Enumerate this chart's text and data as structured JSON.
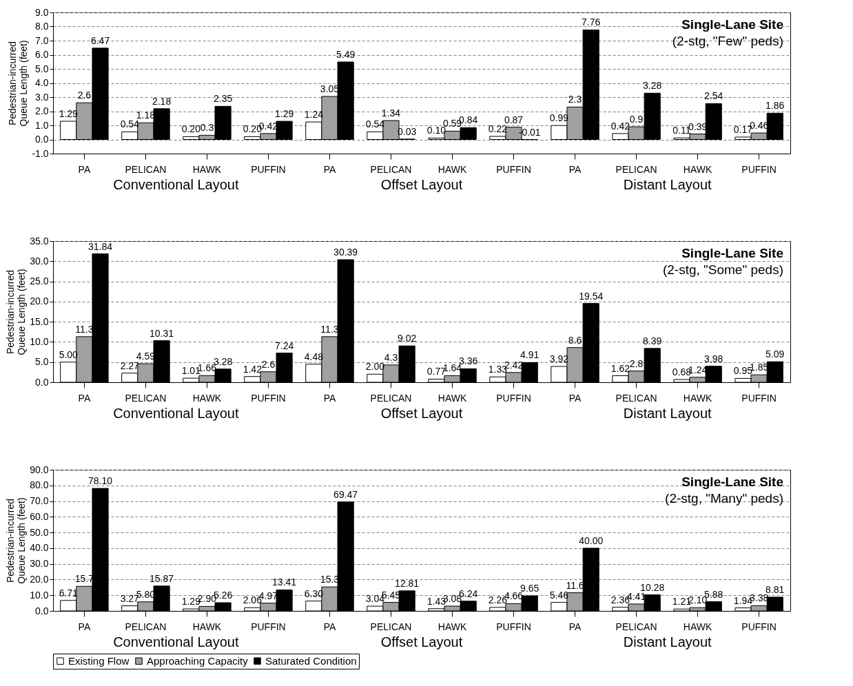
{
  "chart_data": [
    {
      "type": "bar",
      "title": "Single-Lane Site",
      "subtitle": "(2-stg, \"Few\" peds)",
      "ylabel": "Pedestrian-incurred Queue Length (feet)",
      "categories": [
        "PA",
        "PELICAN",
        "HAWK",
        "PUFFIN",
        "PA",
        "PELICAN",
        "HAWK",
        "PUFFIN",
        "PA",
        "PELICAN",
        "HAWK",
        "PUFFIN"
      ],
      "annotations": [
        "Conventional Layout",
        "Offset Layout",
        "Distant Layout"
      ],
      "series": [
        {
          "color": "#ffffff",
          "values": [
            1.29,
            0.54,
            0.2,
            0.2,
            1.24,
            0.54,
            0.1,
            0.22,
            0.99,
            0.42,
            0.11,
            0.17
          ],
          "value_labels": [
            "1.29",
            "0.54",
            "0.20",
            "0.20",
            "1.24",
            "0.54",
            "0.10",
            "0.22",
            "0.99",
            "0.42",
            "0.11",
            "0.17"
          ]
        },
        {
          "color": "#a0a0a0",
          "values": [
            2.6,
            1.18,
            0.3,
            0.42,
            3.05,
            1.34,
            0.59,
            0.87,
            2.3,
            0.9,
            0.39,
            0.46
          ],
          "value_labels": [
            "2.6",
            "1.18",
            "0.3",
            "0.42",
            "3.05",
            "1.34",
            "0.59",
            "0.87",
            "2.3",
            "0.9",
            "0.39",
            "0.46"
          ]
        },
        {
          "color": "#000000",
          "values": [
            6.47,
            2.18,
            2.35,
            1.29,
            5.49,
            0.03,
            0.84,
            -0.01,
            7.76,
            3.28,
            2.54,
            1.86
          ],
          "value_labels": [
            "6.47",
            "2.18",
            "2.35",
            "1.29",
            "5.49",
            "0.03",
            "0.84",
            "-0.01",
            "7.76",
            "3.28",
            "2.54",
            "1.86"
          ]
        }
      ],
      "ylim": [
        -1,
        9
      ],
      "yticks": [
        {
          "value": -1,
          "label": "-1.0"
        },
        {
          "value": 0,
          "label": "0.0"
        },
        {
          "value": 1,
          "label": "1.0"
        },
        {
          "value": 2,
          "label": "2.0"
        },
        {
          "value": 3,
          "label": "3.0"
        },
        {
          "value": 4,
          "label": "4.0"
        },
        {
          "value": 5,
          "label": "5.0"
        },
        {
          "value": 6,
          "label": "6.0"
        },
        {
          "value": 7,
          "label": "7.0"
        },
        {
          "value": 8,
          "label": "8.0"
        },
        {
          "value": 9,
          "label": "9.0"
        }
      ],
      "grid": "y"
    },
    {
      "type": "bar",
      "title": "Single-Lane Site",
      "subtitle": "(2-stg, \"Some\" peds)",
      "ylabel": "Pedestrian-incurred Queue Length (feet)",
      "categories": [
        "PA",
        "PELICAN",
        "HAWK",
        "PUFFIN",
        "PA",
        "PELICAN",
        "HAWK",
        "PUFFIN",
        "PA",
        "PELICAN",
        "HAWK",
        "PUFFIN"
      ],
      "annotations": [
        "Conventional Layout",
        "Offset Layout",
        "Distant Layout"
      ],
      "series": [
        {
          "color": "#ffffff",
          "values": [
            5.0,
            2.27,
            1.01,
            1.42,
            4.48,
            2.0,
            0.77,
            1.33,
            3.92,
            1.62,
            0.68,
            0.95
          ],
          "value_labels": [
            "5.00",
            "2.27",
            "1.01",
            "1.42",
            "4.48",
            "2.00",
            "0.77",
            "1.33",
            "3.92",
            "1.62",
            "0.68",
            "0.95"
          ]
        },
        {
          "color": "#a0a0a0",
          "values": [
            11.3,
            4.59,
            1.66,
            2.6,
            11.3,
            4.3,
            1.64,
            2.42,
            8.6,
            2.8,
            1.24,
            1.85
          ],
          "value_labels": [
            "11.3",
            "4.59",
            "1.66",
            "2.6",
            "11.3",
            "4.3",
            "1.64",
            "2.42",
            "8.6",
            "2.8",
            "1.24",
            "1.85"
          ]
        },
        {
          "color": "#000000",
          "values": [
            31.84,
            10.31,
            3.28,
            7.24,
            30.39,
            9.02,
            3.36,
            4.91,
            19.54,
            8.39,
            3.98,
            5.09
          ],
          "value_labels": [
            "31.84",
            "10.31",
            "3.28",
            "7.24",
            "30.39",
            "9.02",
            "3.36",
            "4.91",
            "19.54",
            "8.39",
            "3.98",
            "5.09"
          ]
        }
      ],
      "ylim": [
        0,
        35
      ],
      "yticks": [
        {
          "value": 0,
          "label": "0.0"
        },
        {
          "value": 5,
          "label": "5.0"
        },
        {
          "value": 10,
          "label": "10.0"
        },
        {
          "value": 15,
          "label": "15.0"
        },
        {
          "value": 20,
          "label": "20.0"
        },
        {
          "value": 25,
          "label": "25.0"
        },
        {
          "value": 30,
          "label": "30.0"
        },
        {
          "value": 35,
          "label": "35.0"
        }
      ],
      "grid": "y"
    },
    {
      "type": "bar",
      "title": "Single-Lane Site",
      "subtitle": "(2-stg, \"Many\" peds)",
      "ylabel": "Pedestrian-incurred Queue Length (feet)",
      "categories": [
        "PA",
        "PELICAN",
        "HAWK",
        "PUFFIN",
        "PA",
        "PELICAN",
        "HAWK",
        "PUFFIN",
        "PA",
        "PELICAN",
        "HAWK",
        "PUFFIN"
      ],
      "annotations": [
        "Conventional Layout",
        "Offset Layout",
        "Distant Layout"
      ],
      "series": [
        {
          "name": "Existing Flow",
          "color": "#ffffff",
          "values": [
            6.71,
            3.27,
            1.29,
            2.06,
            6.3,
            3.04,
            1.43,
            2.26,
            5.46,
            2.36,
            1.21,
            1.94
          ],
          "value_labels": [
            "6.71",
            "3.27",
            "1.29",
            "2.06",
            "6.30",
            "3.04",
            "1.43",
            "2.26",
            "5.46",
            "2.36",
            "1.21",
            "1.94"
          ]
        },
        {
          "name": "Approaching Capacity",
          "color": "#a0a0a0",
          "values": [
            15.7,
            5.8,
            2.9,
            4.97,
            15.3,
            5.45,
            3.08,
            4.66,
            11.6,
            4.41,
            2.1,
            3.38
          ],
          "value_labels": [
            "15.7",
            "5.80",
            "2.90",
            "4.97",
            "15.3",
            "5.45",
            "3.08",
            "4.66",
            "11.6",
            "4.41",
            "2.10",
            "3.38"
          ]
        },
        {
          "name": "Saturated Condition",
          "color": "#000000",
          "values": [
            78.1,
            15.87,
            5.26,
            13.41,
            69.47,
            12.81,
            6.24,
            9.65,
            40.0,
            10.28,
            5.88,
            8.81
          ],
          "value_labels": [
            "78.10",
            "15.87",
            "5.26",
            "13.41",
            "69.47",
            "12.81",
            "6.24",
            "9.65",
            "40.00",
            "10.28",
            "5.88",
            "8.81"
          ]
        }
      ],
      "ylim": [
        0,
        90
      ],
      "yticks": [
        {
          "value": 0,
          "label": "0.0"
        },
        {
          "value": 10,
          "label": "10.0"
        },
        {
          "value": 20,
          "label": "20.0"
        },
        {
          "value": 30,
          "label": "30.0"
        },
        {
          "value": 40,
          "label": "40.0"
        },
        {
          "value": 50,
          "label": "50.0"
        },
        {
          "value": 60,
          "label": "60.0"
        },
        {
          "value": 70,
          "label": "70.0"
        },
        {
          "value": 80,
          "label": "80.0"
        },
        {
          "value": 90,
          "label": "90.0"
        }
      ],
      "grid": "y",
      "legend": "bottom"
    }
  ]
}
